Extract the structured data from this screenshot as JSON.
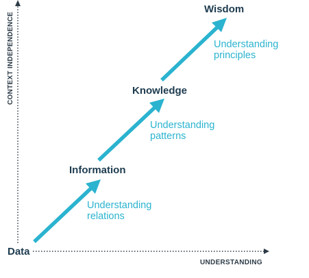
{
  "colors": {
    "arrow": "#2bb3cf",
    "axis": "#2d3b47",
    "level_text": "#1d3b4f",
    "description_text": "#2bb3cf"
  },
  "axes": {
    "x_label": "UNDERSTANDING",
    "y_label": "CONTEXT INDEPENDENCE"
  },
  "levels": [
    {
      "name": "Data"
    },
    {
      "name": "Information"
    },
    {
      "name": "Knowledge"
    },
    {
      "name": "Wisdom"
    }
  ],
  "transitions": [
    {
      "line1": "Understanding",
      "line2": "relations"
    },
    {
      "line1": "Understanding",
      "line2": "patterns"
    },
    {
      "line1": "Understanding",
      "line2": "principles"
    }
  ]
}
